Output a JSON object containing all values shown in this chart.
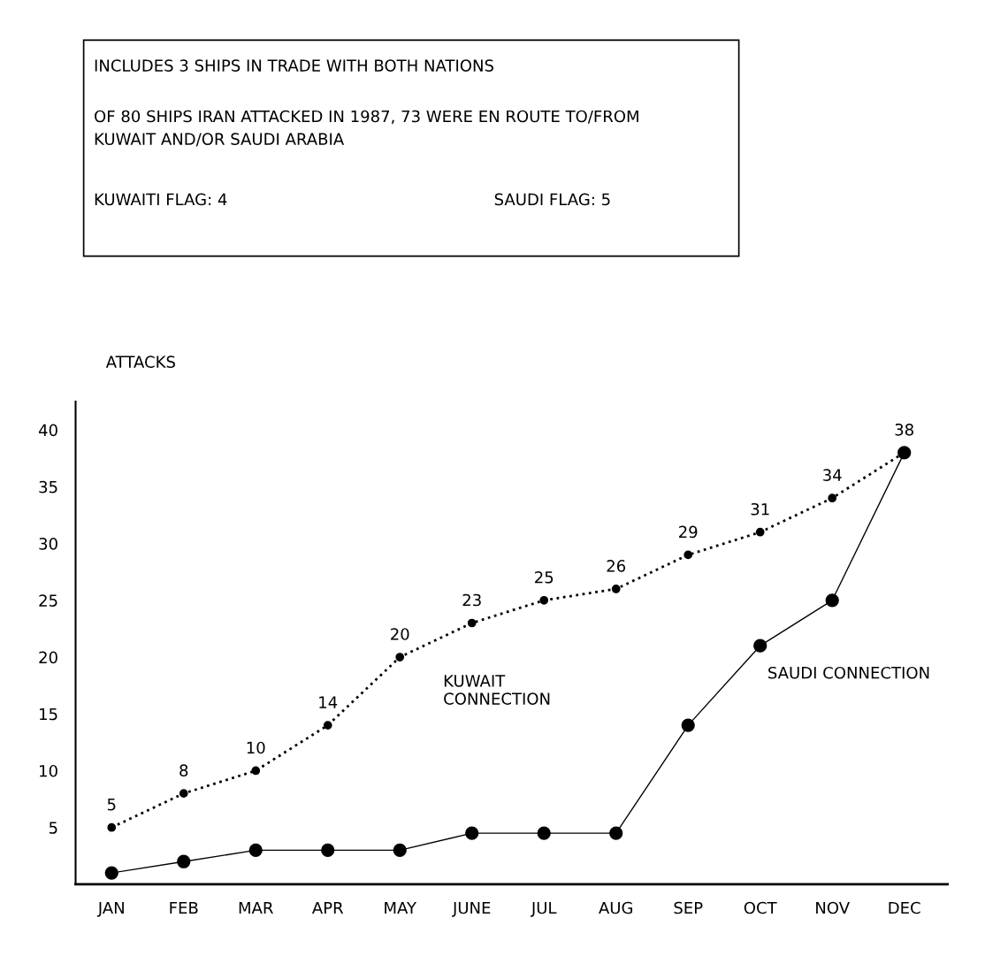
{
  "chart_data": {
    "type": "line",
    "ylabel": "ATTACKS",
    "categories": [
      "JAN",
      "FEB",
      "MAR",
      "APR",
      "MAY",
      "JUNE",
      "JUL",
      "AUG",
      "SEP",
      "OCT",
      "NOV",
      "DEC"
    ],
    "series": [
      {
        "name": "KUWAIT\nCONNECTION",
        "color": "#000000",
        "line_style": "dotted",
        "values": [
          5,
          8,
          10,
          14,
          20,
          23,
          25,
          26,
          29,
          31,
          34,
          38
        ],
        "value_labels": [
          "5",
          "8",
          "10",
          "14",
          "20",
          "23",
          "25",
          "26",
          "29",
          "31",
          "34",
          "38"
        ]
      },
      {
        "name": "SAUDI CONNECTION",
        "color": "#000000",
        "line_style": "solid",
        "values": [
          1,
          2,
          3,
          3,
          3,
          4.5,
          4.5,
          4.5,
          14,
          21,
          25,
          38
        ]
      }
    ],
    "marker": "circle",
    "ylim": [
      0,
      42.5
    ],
    "yticks": [
      5,
      10,
      15,
      20,
      25,
      30,
      35,
      40
    ],
    "grid": false,
    "legend": false,
    "annotations": [
      "INCLUDES 3 SHIPS IN TRADE WITH BOTH NATIONS",
      "OF 80 SHIPS IRAN ATTACKED IN 1987, 73 WERE EN ROUTE TO/FROM\nKUWAIT AND/OR SAUDI ARABIA",
      "KUWAITI FLAG: 4",
      "SAUDI FLAG: 5"
    ]
  }
}
